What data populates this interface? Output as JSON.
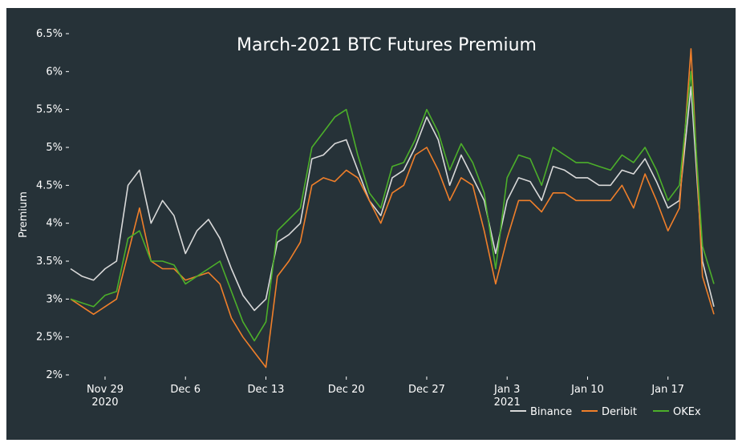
{
  "chart_data": {
    "type": "line",
    "title": "March-2021 BTC Futures Premium",
    "xlabel": "",
    "ylabel": "Premium",
    "ylim": [
      2.0,
      6.5
    ],
    "y_ticks": [
      "2%",
      "2.5%",
      "3%",
      "3.5%",
      "4%",
      "4.5%",
      "5%",
      "5.5%",
      "6%",
      "6.5%"
    ],
    "x_tick_labels": [
      {
        "line1": "Nov 29",
        "line2": "2020"
      },
      {
        "line1": "Dec 6",
        "line2": ""
      },
      {
        "line1": "Dec 13",
        "line2": ""
      },
      {
        "line1": "Dec 20",
        "line2": ""
      },
      {
        "line1": "Dec 27",
        "line2": ""
      },
      {
        "line1": "Jan 3",
        "line2": "2021"
      },
      {
        "line1": "Jan 10",
        "line2": ""
      },
      {
        "line1": "Jan 17",
        "line2": ""
      }
    ],
    "x": [
      "2020-11-26",
      "2020-11-27",
      "2020-11-28",
      "2020-11-29",
      "2020-11-30",
      "2020-12-01",
      "2020-12-02",
      "2020-12-03",
      "2020-12-04",
      "2020-12-05",
      "2020-12-06",
      "2020-12-07",
      "2020-12-08",
      "2020-12-09",
      "2020-12-10",
      "2020-12-11",
      "2020-12-12",
      "2020-12-13",
      "2020-12-14",
      "2020-12-15",
      "2020-12-16",
      "2020-12-17",
      "2020-12-18",
      "2020-12-19",
      "2020-12-20",
      "2020-12-21",
      "2020-12-22",
      "2020-12-23",
      "2020-12-24",
      "2020-12-25",
      "2020-12-26",
      "2020-12-27",
      "2020-12-28",
      "2020-12-29",
      "2020-12-30",
      "2020-12-31",
      "2021-01-01",
      "2021-01-02",
      "2021-01-03",
      "2021-01-04",
      "2021-01-05",
      "2021-01-06",
      "2021-01-07",
      "2021-01-08",
      "2021-01-09",
      "2021-01-10",
      "2021-01-11",
      "2021-01-12",
      "2021-01-13",
      "2021-01-14",
      "2021-01-15",
      "2021-01-16",
      "2021-01-17",
      "2021-01-18",
      "2021-01-19",
      "2021-01-20",
      "2021-01-21"
    ],
    "series": [
      {
        "name": "Binance",
        "color": "#d9d9d9",
        "values": [
          3.4,
          3.3,
          3.25,
          3.4,
          3.5,
          4.5,
          4.7,
          4.0,
          4.3,
          4.1,
          3.6,
          3.9,
          4.05,
          3.8,
          3.4,
          3.05,
          2.85,
          3.0,
          3.75,
          3.85,
          4.0,
          4.85,
          4.9,
          5.05,
          5.1,
          4.7,
          4.3,
          4.1,
          4.6,
          4.7,
          5.0,
          5.4,
          5.1,
          4.5,
          4.9,
          4.6,
          4.3,
          3.6,
          4.3,
          4.6,
          4.55,
          4.3,
          4.75,
          4.7,
          4.6,
          4.6,
          4.5,
          4.5,
          4.7,
          4.65,
          4.85,
          4.55,
          4.2,
          4.3,
          5.8,
          3.5,
          2.9
        ]
      },
      {
        "name": "Deribit",
        "color": "#f07f2a",
        "values": [
          3.0,
          2.9,
          2.8,
          2.9,
          3.0,
          3.6,
          4.2,
          3.5,
          3.4,
          3.4,
          3.25,
          3.3,
          3.35,
          3.2,
          2.75,
          2.5,
          2.3,
          2.1,
          3.3,
          3.5,
          3.75,
          4.5,
          4.6,
          4.55,
          4.7,
          4.6,
          4.3,
          4.0,
          4.4,
          4.5,
          4.9,
          5.0,
          4.7,
          4.3,
          4.6,
          4.5,
          3.9,
          3.2,
          3.8,
          4.3,
          4.3,
          4.15,
          4.4,
          4.4,
          4.3,
          4.3,
          4.3,
          4.3,
          4.5,
          4.2,
          4.65,
          4.3,
          3.9,
          4.2,
          6.3,
          3.3,
          2.8
        ]
      },
      {
        "name": "OKEx",
        "color": "#4caf2a",
        "values": [
          3.0,
          2.95,
          2.9,
          3.05,
          3.1,
          3.8,
          3.9,
          3.5,
          3.5,
          3.45,
          3.2,
          3.3,
          3.4,
          3.5,
          3.1,
          2.7,
          2.45,
          2.7,
          3.9,
          4.05,
          4.2,
          5.0,
          5.2,
          5.4,
          5.5,
          4.9,
          4.4,
          4.2,
          4.75,
          4.8,
          5.1,
          5.5,
          5.2,
          4.7,
          5.05,
          4.8,
          4.4,
          3.4,
          4.6,
          4.9,
          4.85,
          4.5,
          5.0,
          4.9,
          4.8,
          4.8,
          4.75,
          4.7,
          4.9,
          4.8,
          5.0,
          4.7,
          4.3,
          4.5,
          6.0,
          3.7,
          3.2
        ]
      }
    ],
    "legend_position": "bottom-right",
    "grid": false
  }
}
